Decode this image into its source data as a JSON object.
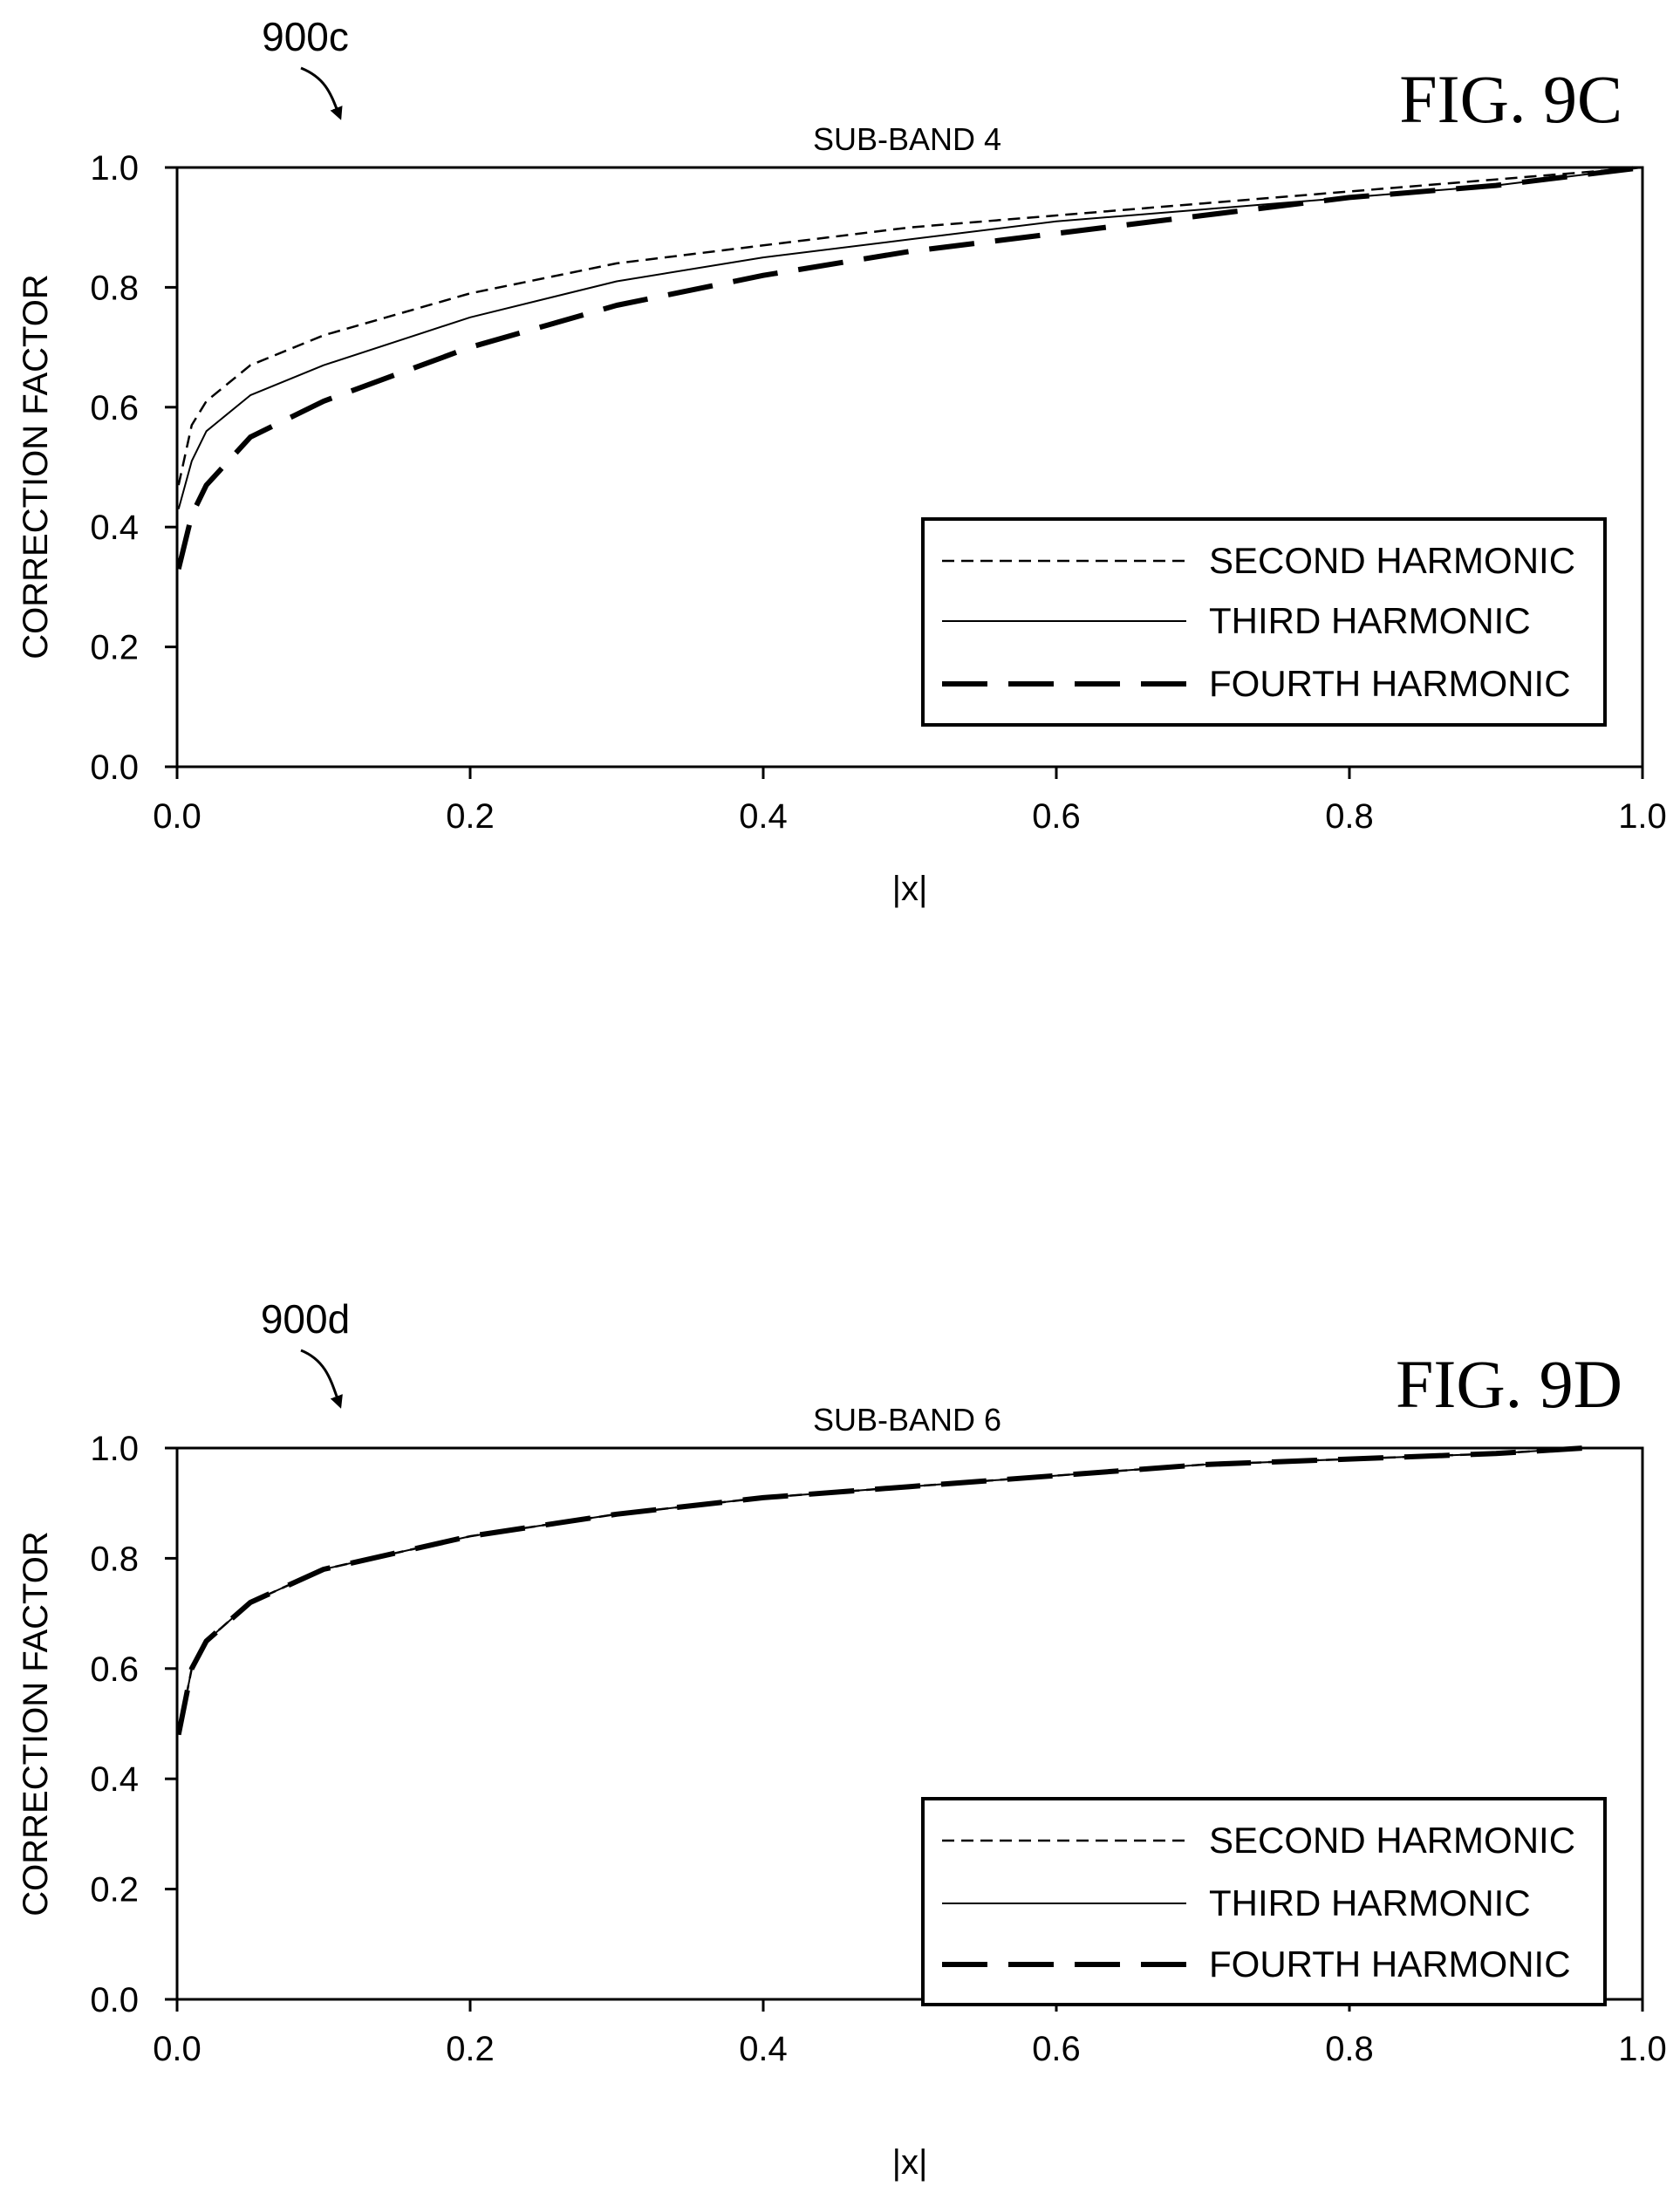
{
  "chart_data": [
    {
      "type": "line",
      "ref_label": "900c",
      "fig_label": "FIG. 9C",
      "title": "SUB-BAND 4",
      "xlabel": "|x|",
      "ylabel": "CORRECTION FACTOR",
      "xlim": [
        0,
        1
      ],
      "ylim": [
        0,
        1
      ],
      "xticks": [
        "0.0",
        "0.2",
        "0.4",
        "0.6",
        "0.8",
        "1.0"
      ],
      "yticks": [
        "0.0",
        "0.2",
        "0.4",
        "0.6",
        "0.8",
        "1.0"
      ],
      "grid": false,
      "legend_position": "lower-right",
      "x": [
        0.001,
        0.01,
        0.02,
        0.05,
        0.1,
        0.2,
        0.3,
        0.4,
        0.5,
        0.6,
        0.7,
        0.8,
        0.9,
        1.0
      ],
      "series": [
        {
          "name": "SECOND HARMONIC",
          "style": "short-dash",
          "values": [
            0.47,
            0.57,
            0.61,
            0.67,
            0.72,
            0.79,
            0.84,
            0.87,
            0.9,
            0.92,
            0.94,
            0.96,
            0.98,
            1.0
          ]
        },
        {
          "name": "THIRD HARMONIC",
          "style": "solid-thin",
          "values": [
            0.43,
            0.51,
            0.56,
            0.62,
            0.67,
            0.75,
            0.81,
            0.85,
            0.88,
            0.91,
            0.93,
            0.95,
            0.97,
            1.0
          ]
        },
        {
          "name": "FOURTH HARMONIC",
          "style": "long-dash-thick",
          "values": [
            0.33,
            0.42,
            0.47,
            0.55,
            0.61,
            0.7,
            0.77,
            0.82,
            0.86,
            0.89,
            0.92,
            0.95,
            0.97,
            1.0
          ]
        }
      ]
    },
    {
      "type": "line",
      "ref_label": "900d",
      "fig_label": "FIG. 9D",
      "title": "SUB-BAND 6",
      "xlabel": "|x|",
      "ylabel": "CORRECTION FACTOR",
      "xlim": [
        0,
        1
      ],
      "ylim": [
        0,
        1
      ],
      "xticks": [
        "0.0",
        "0.2",
        "0.4",
        "0.6",
        "0.8",
        "1.0"
      ],
      "yticks": [
        "0.0",
        "0.2",
        "0.4",
        "0.6",
        "0.8",
        "1.0"
      ],
      "grid": false,
      "legend_position": "lower-right",
      "x": [
        0.001,
        0.01,
        0.02,
        0.05,
        0.1,
        0.2,
        0.3,
        0.4,
        0.5,
        0.6,
        0.7,
        0.8,
        0.9,
        0.96
      ],
      "series": [
        {
          "name": "SECOND HARMONIC",
          "style": "short-dash",
          "values": [
            0.48,
            0.6,
            0.65,
            0.72,
            0.78,
            0.84,
            0.88,
            0.91,
            0.93,
            0.95,
            0.97,
            0.98,
            0.99,
            1.0
          ]
        },
        {
          "name": "THIRD HARMONIC",
          "style": "solid-thin",
          "values": [
            0.48,
            0.6,
            0.65,
            0.72,
            0.78,
            0.84,
            0.88,
            0.91,
            0.93,
            0.95,
            0.97,
            0.98,
            0.99,
            1.0
          ]
        },
        {
          "name": "FOURTH HARMONIC",
          "style": "long-dash-thick",
          "values": [
            0.48,
            0.6,
            0.65,
            0.72,
            0.78,
            0.84,
            0.88,
            0.91,
            0.93,
            0.95,
            0.97,
            0.98,
            0.99,
            1.0
          ]
        }
      ]
    }
  ]
}
